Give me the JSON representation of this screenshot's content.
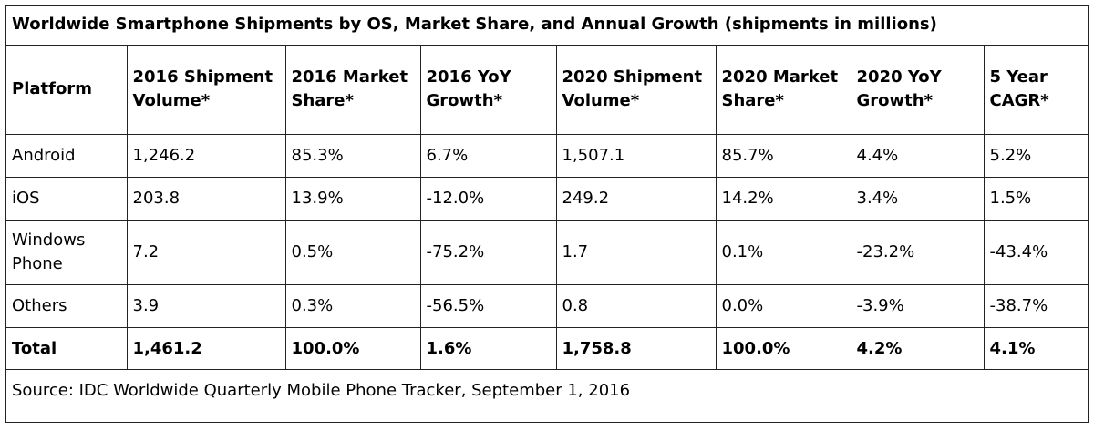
{
  "chart_data": {
    "type": "table",
    "title": "Worldwide Smartphone Shipments by OS, Market Share, and Annual Growth (shipments in millions)",
    "columns": [
      "Platform",
      "2016 Shipment Volume*",
      "2016 Market Share*",
      "2016 YoY Growth*",
      "2020 Shipment Volume*",
      "2020 Market Share*",
      "2020 YoY Growth*",
      "5 Year CAGR*"
    ],
    "rows": [
      [
        "Android",
        "1,246.2",
        "85.3%",
        "6.7%",
        "1,507.1",
        "85.7%",
        "4.4%",
        "5.2%"
      ],
      [
        "iOS",
        "203.8",
        "13.9%",
        "-12.0%",
        "249.2",
        "14.2%",
        "3.4%",
        "1.5%"
      ],
      [
        "Windows Phone",
        "7.2",
        "0.5%",
        "-75.2%",
        "1.7",
        "0.1%",
        "-23.2%",
        "-43.4%"
      ],
      [
        "Others",
        "3.9",
        "0.3%",
        "-56.5%",
        "0.8",
        "0.0%",
        "-3.9%",
        "-38.7%"
      ],
      [
        "Total",
        "1,461.2",
        "100.0%",
        "1.6%",
        "1,758.8",
        "100.0%",
        "4.2%",
        "4.1%"
      ]
    ],
    "source": "Source: IDC Worldwide Quarterly Mobile Phone Tracker, September 1, 2016"
  }
}
